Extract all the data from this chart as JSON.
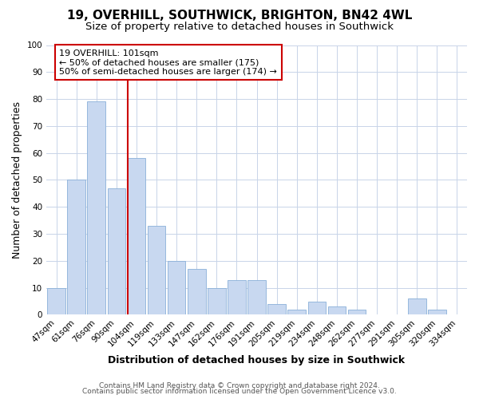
{
  "title": "19, OVERHILL, SOUTHWICK, BRIGHTON, BN42 4WL",
  "subtitle": "Size of property relative to detached houses in Southwick",
  "xlabel": "Distribution of detached houses by size in Southwick",
  "ylabel": "Number of detached properties",
  "bar_color": "#c8d8f0",
  "bar_edge_color": "#8ab0d8",
  "background_color": "#ffffff",
  "grid_color": "#c8d4e8",
  "categories": [
    "47sqm",
    "61sqm",
    "76sqm",
    "90sqm",
    "104sqm",
    "119sqm",
    "133sqm",
    "147sqm",
    "162sqm",
    "176sqm",
    "191sqm",
    "205sqm",
    "219sqm",
    "234sqm",
    "248sqm",
    "262sqm",
    "277sqm",
    "291sqm",
    "305sqm",
    "320sqm",
    "334sqm"
  ],
  "values": [
    10,
    50,
    79,
    47,
    58,
    33,
    20,
    17,
    10,
    13,
    13,
    4,
    2,
    5,
    3,
    2,
    0,
    0,
    6,
    2,
    0
  ],
  "ylim": [
    0,
    100
  ],
  "yticks": [
    0,
    10,
    20,
    30,
    40,
    50,
    60,
    70,
    80,
    90,
    100
  ],
  "vline_index": 4,
  "vline_color": "#cc0000",
  "annotation_text": "19 OVERHILL: 101sqm\n← 50% of detached houses are smaller (175)\n50% of semi-detached houses are larger (174) →",
  "annotation_box_color": "#ffffff",
  "annotation_box_edge_color": "#cc0000",
  "footer_line1": "Contains HM Land Registry data © Crown copyright and database right 2024.",
  "footer_line2": "Contains public sector information licensed under the Open Government Licence v3.0.",
  "title_fontsize": 11,
  "subtitle_fontsize": 9.5,
  "label_fontsize": 9,
  "tick_fontsize": 7.5,
  "annotation_fontsize": 8,
  "footer_fontsize": 6.5
}
